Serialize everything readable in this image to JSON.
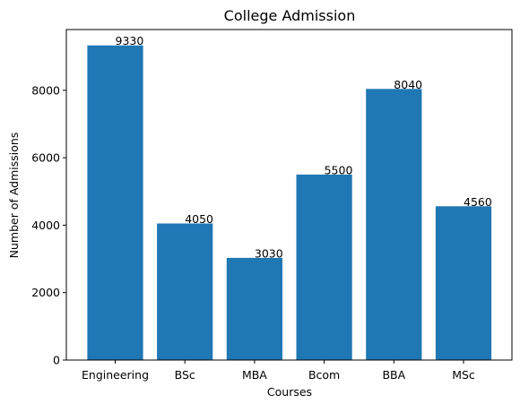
{
  "chart_data": {
    "type": "bar",
    "title": "College Admission",
    "xlabel": "Courses",
    "ylabel": "Number of Admissions",
    "categories": [
      "Engineering",
      "BSc",
      "MBA",
      "Bcom",
      "BBA",
      "MSc"
    ],
    "values": [
      9330,
      4050,
      3030,
      5500,
      8040,
      4560
    ],
    "data_labels": [
      "9330",
      "4050",
      "3030",
      "5500",
      "8040",
      "4560"
    ],
    "ylim": [
      0,
      9800
    ],
    "yticks": [
      0,
      2000,
      4000,
      6000,
      8000
    ],
    "ytick_labels": [
      "0",
      "2000",
      "4000",
      "6000",
      "8000"
    ],
    "bar_color": "#1f77b4",
    "grid": false,
    "legend": "none"
  }
}
